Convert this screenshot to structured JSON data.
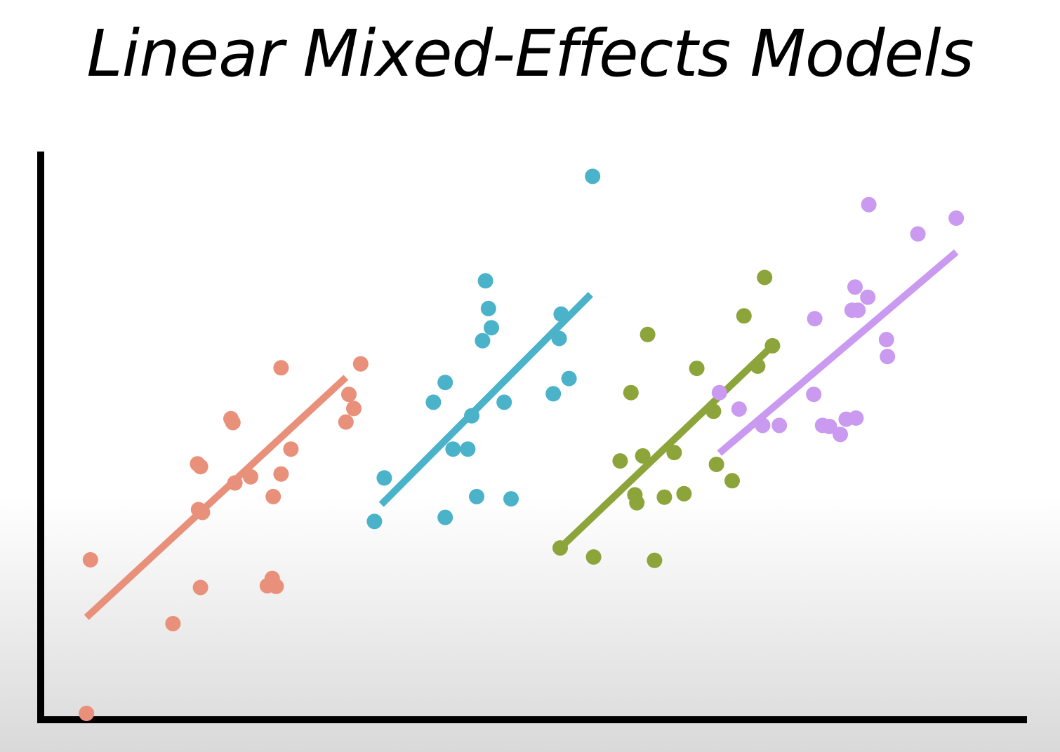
{
  "chart_data": {
    "type": "scatter",
    "title": "Linear Mixed-Effects Models",
    "xlabel": "",
    "ylabel": "",
    "xlim": [
      0,
      100
    ],
    "ylim": [
      0,
      100
    ],
    "grid": false,
    "legend": "none",
    "series": [
      {
        "color": "#e8907a",
        "points": [
          [
            4.3,
            0.5
          ],
          [
            4.7,
            27.7
          ],
          [
            13.1,
            16.4
          ],
          [
            16.1,
            36.1
          ],
          [
            15.7,
            36.6
          ],
          [
            15.6,
            44.7
          ],
          [
            15.9,
            44.2
          ],
          [
            15.9,
            22.8
          ],
          [
            19.4,
            41.3
          ],
          [
            19.0,
            52.7
          ],
          [
            19.2,
            52.0
          ],
          [
            21.0,
            42.4
          ],
          [
            23.3,
            38.9
          ],
          [
            24.1,
            42.9
          ],
          [
            25.1,
            47.3
          ],
          [
            24.1,
            61.7
          ],
          [
            23.6,
            23.0
          ],
          [
            23.2,
            24.4
          ],
          [
            22.7,
            23.1
          ],
          [
            30.7,
            52.1
          ],
          [
            31.0,
            57.0
          ],
          [
            32.2,
            62.4
          ],
          [
            31.5,
            54.5
          ]
        ],
        "fit": [
          [
            4.3,
            17.5
          ],
          [
            30.7,
            60.0
          ]
        ]
      },
      {
        "color": "#4ab2c9",
        "points": [
          [
            33.6,
            34.5
          ],
          [
            34.6,
            42.2
          ],
          [
            39.6,
            55.6
          ],
          [
            40.8,
            59.1
          ],
          [
            41.6,
            47.3
          ],
          [
            43.1,
            47.3
          ],
          [
            43.5,
            53.2
          ],
          [
            40.8,
            35.2
          ],
          [
            44.0,
            38.9
          ],
          [
            44.6,
            66.5
          ],
          [
            45.5,
            68.8
          ],
          [
            45.2,
            72.2
          ],
          [
            44.9,
            77.1
          ],
          [
            46.8,
            55.6
          ],
          [
            47.5,
            38.5
          ],
          [
            51.8,
            57.1
          ],
          [
            52.4,
            66.9
          ],
          [
            52.6,
            71.2
          ],
          [
            53.4,
            59.8
          ],
          [
            55.8,
            95.6
          ]
        ],
        "fit": [
          [
            34.3,
            37.5
          ],
          [
            55.6,
            74.7
          ]
        ]
      },
      {
        "color": "#8ca43a",
        "points": [
          [
            52.5,
            29.8
          ],
          [
            55.9,
            28.2
          ],
          [
            58.6,
            45.2
          ],
          [
            59.7,
            57.3
          ],
          [
            60.1,
            39.2
          ],
          [
            60.3,
            37.8
          ],
          [
            60.9,
            46.1
          ],
          [
            61.4,
            67.6
          ],
          [
            62.1,
            27.6
          ],
          [
            63.1,
            38.8
          ],
          [
            64.1,
            46.7
          ],
          [
            65.1,
            39.4
          ],
          [
            66.4,
            61.6
          ],
          [
            68.1,
            54.0
          ],
          [
            68.4,
            44.6
          ],
          [
            70.0,
            41.7
          ],
          [
            71.2,
            70.9
          ],
          [
            72.6,
            62.0
          ],
          [
            73.3,
            77.7
          ],
          [
            74.1,
            65.6
          ]
        ],
        "fit": [
          [
            52.5,
            29.8
          ],
          [
            74.1,
            65.6
          ]
        ]
      },
      {
        "color": "#c99af0",
        "points": [
          [
            68.7,
            57.3
          ],
          [
            70.7,
            54.4
          ],
          [
            73.1,
            51.5
          ],
          [
            74.8,
            51.5
          ],
          [
            78.3,
            57.0
          ],
          [
            78.4,
            70.4
          ],
          [
            79.2,
            51.5
          ],
          [
            79.9,
            51.3
          ],
          [
            81.0,
            49.9
          ],
          [
            81.6,
            52.6
          ],
          [
            82.2,
            71.9
          ],
          [
            82.6,
            52.8
          ],
          [
            82.5,
            76.0
          ],
          [
            82.8,
            71.9
          ],
          [
            83.8,
            74.2
          ],
          [
            83.9,
            90.6
          ],
          [
            85.7,
            66.7
          ],
          [
            85.8,
            63.7
          ],
          [
            88.9,
            85.4
          ],
          [
            92.8,
            88.2
          ]
        ],
        "fit": [
          [
            68.7,
            46.6
          ],
          [
            92.8,
            82.2
          ]
        ]
      }
    ]
  }
}
